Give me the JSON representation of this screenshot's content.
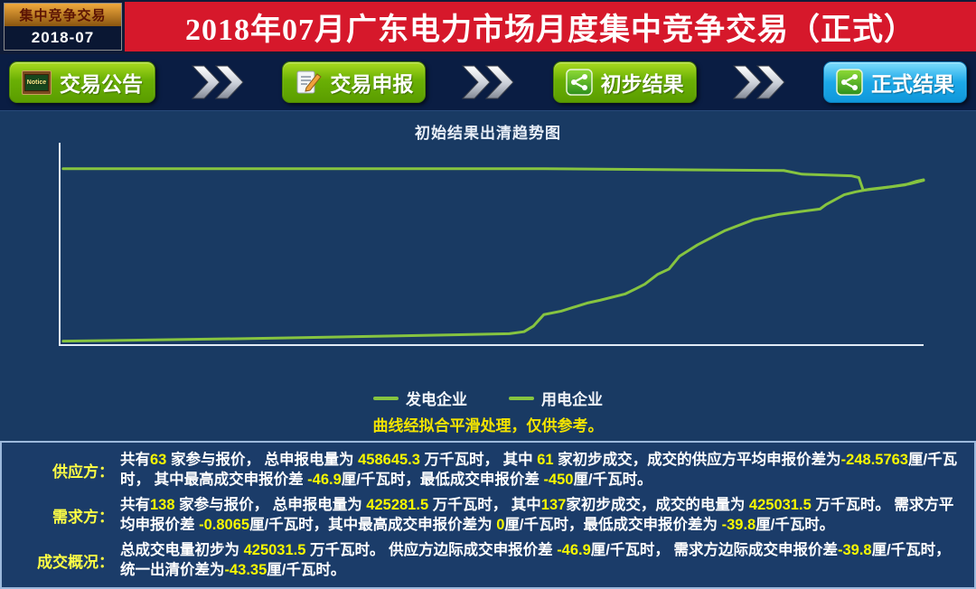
{
  "badge": {
    "title": "集中竞争交易",
    "period": "2018-07"
  },
  "header": {
    "title": "2018年07月广东电力市场月度集中竞争交易（正式）"
  },
  "nav": {
    "notice_icon_text": "Notice",
    "steps": [
      {
        "label": "交易公告",
        "icon": "notice-board-icon",
        "style": "green"
      },
      {
        "label": "交易申报",
        "icon": "document-pencil-icon",
        "style": "green"
      },
      {
        "label": "初步结果",
        "icon": "share-network-icon",
        "style": "green"
      },
      {
        "label": "正式结果",
        "icon": "share-network-icon",
        "style": "blue"
      }
    ],
    "arrow_icon": "double-chevron-right-icon"
  },
  "chart_data": {
    "type": "line",
    "title": "初始结果出清趋势图",
    "note": "曲线经拟合平滑处理，仅供参考。",
    "xlabel": "",
    "ylabel": "",
    "axis_tick_labels_visible": false,
    "grid": false,
    "legend_position": "bottom",
    "coords_units": "percent of plot area; x 0-100 left to right, y 0-100 top to bottom (no numeric axis labels shown in source)",
    "series": [
      {
        "name": "发电企业",
        "color": "#86c440",
        "points": [
          [
            0.3,
            98.5
          ],
          [
            9,
            98
          ],
          [
            25,
            97
          ],
          [
            40,
            95.8
          ],
          [
            52,
            94.8
          ],
          [
            53.7,
            93.8
          ],
          [
            54.8,
            91
          ],
          [
            56,
            85.3
          ],
          [
            58,
            83.6
          ],
          [
            61,
            79.6
          ],
          [
            62.5,
            78.2
          ],
          [
            65.4,
            75.1
          ],
          [
            66.7,
            72.4
          ],
          [
            67.7,
            70.2
          ],
          [
            69.2,
            65.3
          ],
          [
            70.5,
            62.7
          ],
          [
            71.7,
            56.4
          ],
          [
            73.8,
            50.7
          ],
          [
            77,
            43.6
          ],
          [
            80.3,
            38.2
          ],
          [
            83.2,
            35.6
          ],
          [
            84.8,
            34.7
          ],
          [
            88,
            32.9
          ],
          [
            88.7,
            30.7
          ],
          [
            90.8,
            25.8
          ],
          [
            92.1,
            24.4
          ],
          [
            93.7,
            23.1
          ],
          [
            96.3,
            21.8
          ],
          [
            98.4,
            20.4
          ],
          [
            100,
            18.7
          ]
        ]
      },
      {
        "name": "用电企业",
        "color": "#86c440",
        "points": [
          [
            0.3,
            12.9
          ],
          [
            56,
            12.9
          ],
          [
            83.8,
            13.8
          ],
          [
            85.9,
            15.6
          ],
          [
            91.6,
            16.4
          ],
          [
            92.5,
            17.3
          ],
          [
            93,
            23.6
          ],
          [
            94.8,
            22.7
          ],
          [
            97.9,
            20.9
          ],
          [
            99.2,
            19.1
          ],
          [
            100,
            18.4
          ]
        ]
      }
    ]
  },
  "info": {
    "rows": [
      {
        "label": "供应方：",
        "segments": [
          {
            "t": "共有",
            "c": "w"
          },
          {
            "t": "63",
            "c": "y"
          },
          {
            "t": " 家参与报价， 总申报电量为 ",
            "c": "w"
          },
          {
            "t": "458645.3",
            "c": "y"
          },
          {
            "t": " 万千瓦时， 其中 ",
            "c": "w"
          },
          {
            "t": "61",
            "c": "y"
          },
          {
            "t": " 家初步成交，成交的供应方平均申报价差为",
            "c": "w"
          },
          {
            "t": "-248.5763",
            "c": "y"
          },
          {
            "t": "厘/千瓦时， 其中最高成交申报价差 ",
            "c": "w"
          },
          {
            "t": "-46.9",
            "c": "y"
          },
          {
            "t": "厘/千瓦时，最低成交申报价差 ",
            "c": "w"
          },
          {
            "t": "-450",
            "c": "y"
          },
          {
            "t": "厘/千瓦时。",
            "c": "w"
          }
        ]
      },
      {
        "label": "需求方：",
        "segments": [
          {
            "t": "共有",
            "c": "w"
          },
          {
            "t": "138",
            "c": "y"
          },
          {
            "t": " 家参与报价， 总申报电量为 ",
            "c": "w"
          },
          {
            "t": "425281.5",
            "c": "y"
          },
          {
            "t": " 万千瓦时， 其中",
            "c": "w"
          },
          {
            "t": "137",
            "c": "y"
          },
          {
            "t": "家初步成交，成交的电量为 ",
            "c": "w"
          },
          {
            "t": "425031.5",
            "c": "y"
          },
          {
            "t": " 万千瓦时。 需求方平均申报价差 ",
            "c": "w"
          },
          {
            "t": "-0.8065",
            "c": "y"
          },
          {
            "t": "厘/千瓦时，其中最高成交申报价差为 ",
            "c": "w"
          },
          {
            "t": "0",
            "c": "y"
          },
          {
            "t": "厘/千瓦时，最低成交申报价差为 ",
            "c": "w"
          },
          {
            "t": "-39.8",
            "c": "y"
          },
          {
            "t": "厘/千瓦时。",
            "c": "w"
          }
        ]
      },
      {
        "label": "成交概况：",
        "segments": [
          {
            "t": "总成交电量初步为 ",
            "c": "w"
          },
          {
            "t": "425031.5",
            "c": "y"
          },
          {
            "t": " 万千瓦时。 供应方边际成交申报价差 ",
            "c": "w"
          },
          {
            "t": "-46.9",
            "c": "y"
          },
          {
            "t": "厘/千瓦时， 需求方边际成交申报价差",
            "c": "w"
          },
          {
            "t": "-39.8",
            "c": "y"
          },
          {
            "t": "厘/千瓦时， 统一出清价差为",
            "c": "w"
          },
          {
            "t": "-43.35",
            "c": "y"
          },
          {
            "t": "厘/千瓦时。",
            "c": "w"
          }
        ]
      }
    ]
  },
  "colors": {
    "accent_red": "#d6182b",
    "button_green": "#6ab004",
    "button_blue": "#1ca8e8",
    "line_green": "#86c440",
    "highlight_yellow": "#f7f800",
    "navy_background": "#0c1f44"
  }
}
